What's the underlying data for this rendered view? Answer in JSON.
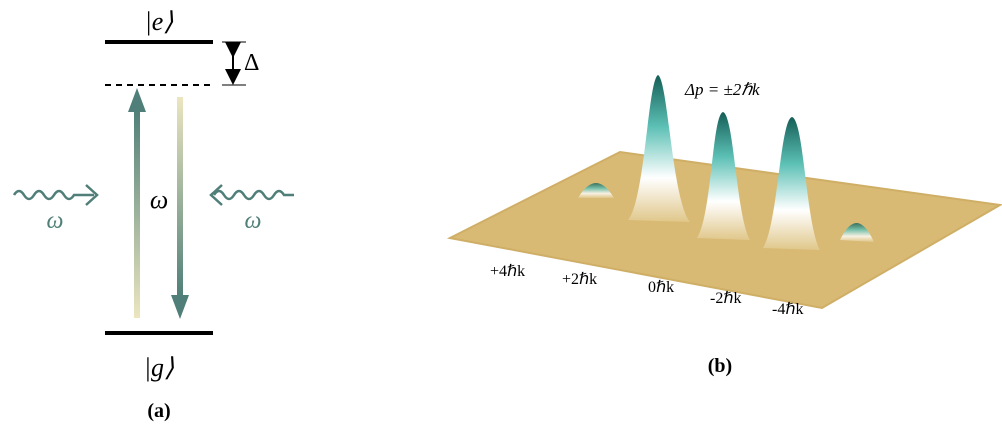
{
  "panel_a": {
    "excited_state": "|e⟩",
    "detuning": "Δ",
    "omega_left": "ω",
    "omega_center": "ω",
    "omega_right": "ω",
    "ground_state": "|g⟩",
    "caption": "(a)"
  },
  "panel_b": {
    "annotation": "Δp = ±2ℏk",
    "momentum_labels": [
      "+4ℏk",
      "+2ℏk",
      "0ℏk",
      "-2ℏk",
      "-4ℏk"
    ],
    "caption": "(b)"
  }
}
